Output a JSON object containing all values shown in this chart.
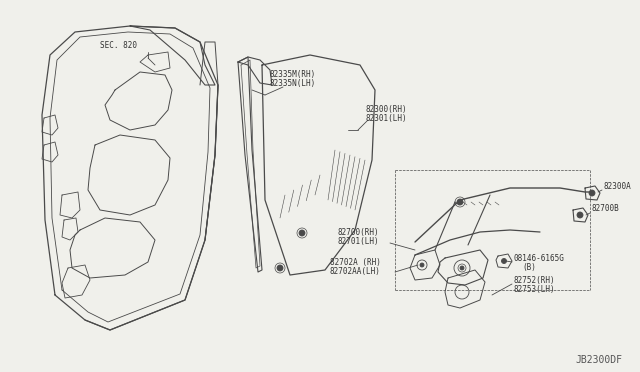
{
  "bg_color": "#f0f0eb",
  "fig_width": 6.4,
  "fig_height": 3.72,
  "dpi": 100,
  "labels": {
    "sec_820": "SEC. 820",
    "l1a": "82335M(RH)",
    "l1b": "82335N(LH)",
    "l2a": "82300(RH)",
    "l2b": "82301(LH)",
    "l3a": "82700(RH)",
    "l3b": "82701(LH)",
    "l4a": "82702A (RH)",
    "l4b": "82702AA(LH)",
    "l5": "82300A",
    "l6": "82700B",
    "l7a": "08146-6165G",
    "l7b": "(B)",
    "l8a": "82752(RH)",
    "l8b": "82753(LH)",
    "diagram_id": "JB2300DF"
  },
  "line_color": "#4a4a4a",
  "text_color": "#333333",
  "font_size": 5.5
}
